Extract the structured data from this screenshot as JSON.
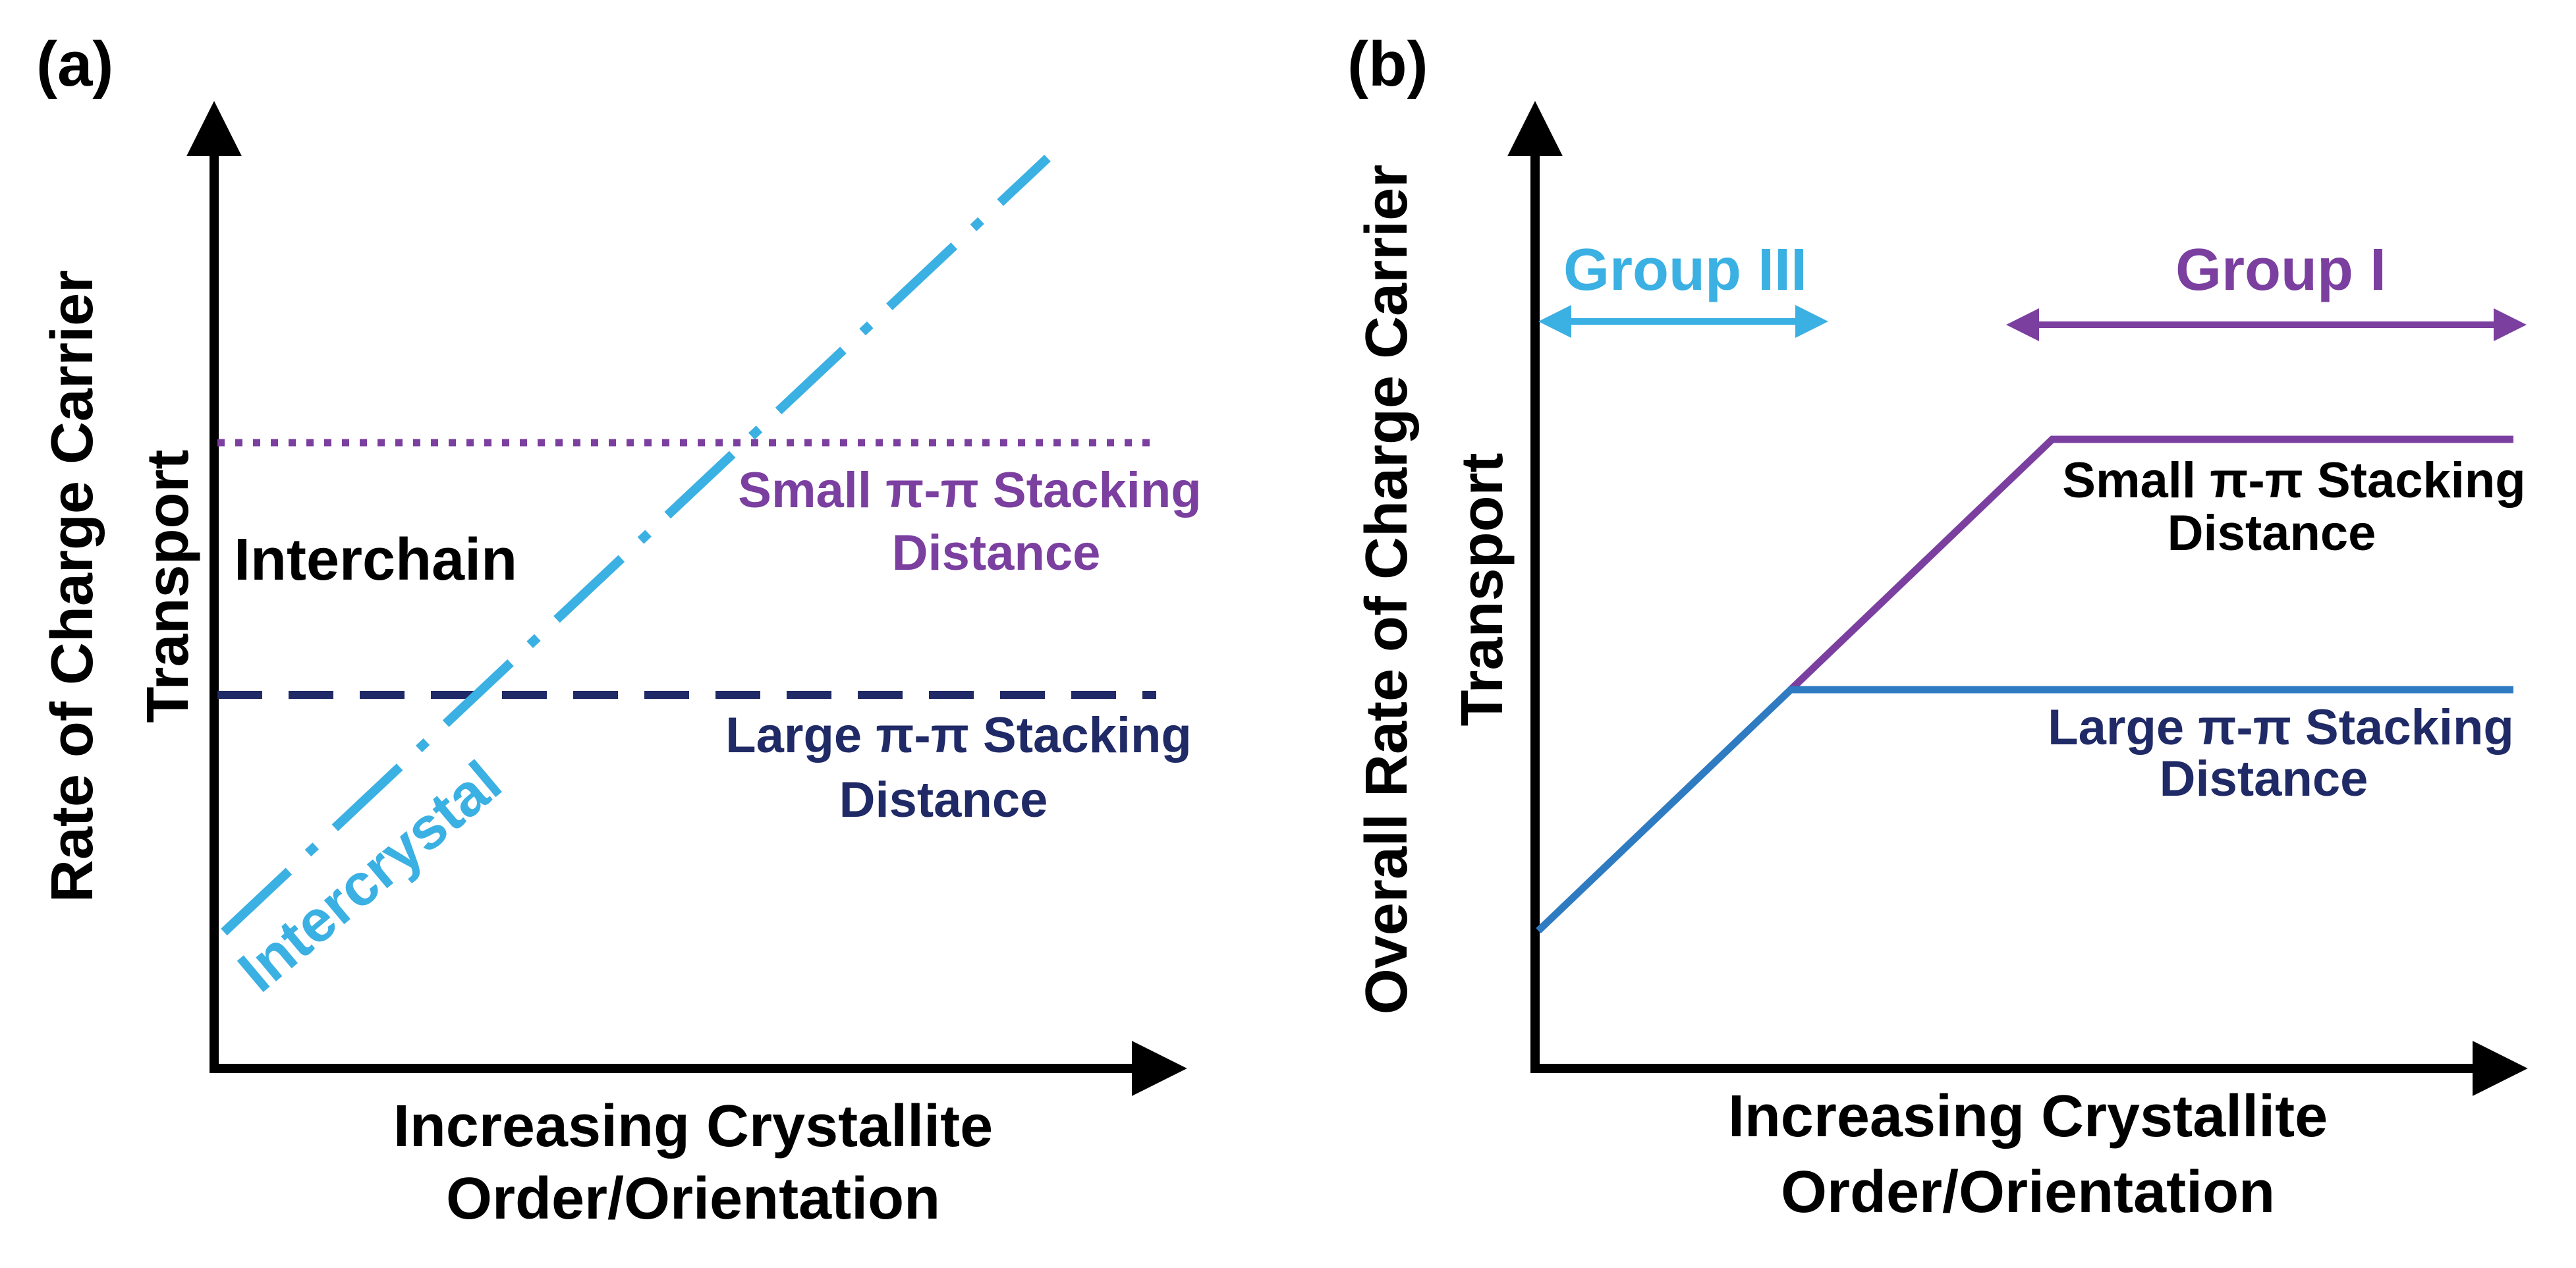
{
  "colors": {
    "axis": "#000000",
    "intercrystal": "#3bb0e3",
    "small_stacking": "#7b3fa0",
    "large_stacking": "#1f2a66",
    "group3": "#3bb0e3",
    "group1": "#7b3fa0",
    "blue_line": "#2f7bc2"
  },
  "panel_a": {
    "panel_label": "(a)",
    "y_label_line1": "Rate of Charge Carrier",
    "y_label_line2": "Transport",
    "x_label_line1": "Increasing Crystallite",
    "x_label_line2": "Order/Orientation",
    "interchain_label": "Interchain",
    "intercrystal_label": "Intercrystal",
    "small_line1": "Small π-π Stacking",
    "small_line2": "Distance",
    "large_line1": "Large π-π Stacking",
    "large_line2": "Distance"
  },
  "panel_b": {
    "panel_label": "(b)",
    "y_label_line1": "Overall Rate of Charge Carrier",
    "y_label_line2": "Transport",
    "x_label_line1": "Increasing Crystallite",
    "x_label_line2": "Order/Orientation",
    "group3_label": "Group III",
    "group1_label": "Group I",
    "small_line1": "Small π-π Stacking",
    "small_line2": "Distance",
    "large_line1": "Large π-π Stacking",
    "large_line2": "Distance"
  }
}
